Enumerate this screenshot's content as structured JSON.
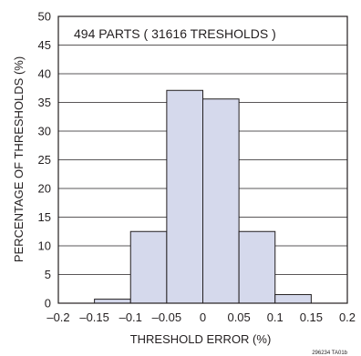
{
  "chart_data": {
    "type": "bar",
    "subtype": "histogram",
    "bins": [
      {
        "start": -0.15,
        "end": -0.1,
        "value": 0.7
      },
      {
        "start": -0.1,
        "end": -0.05,
        "value": 12.5
      },
      {
        "start": -0.05,
        "end": 0.0,
        "value": 37.1
      },
      {
        "start": 0.0,
        "end": 0.05,
        "value": 35.6
      },
      {
        "start": 0.05,
        "end": 0.1,
        "value": 12.5
      },
      {
        "start": 0.1,
        "end": 0.15,
        "value": 1.5
      }
    ],
    "xlabel": "THRESHOLD ERROR (%)",
    "ylabel": "PERCENTAGE OF THRESHOLDS (%)",
    "xlim": [
      -0.2,
      0.2
    ],
    "ylim": [
      0,
      50
    ],
    "xticks": [
      -0.2,
      -0.15,
      -0.1,
      -0.05,
      0,
      0.05,
      0.1,
      0.15,
      0.2
    ],
    "xtick_labels": [
      "–0.2",
      "–0.15",
      "–0.1",
      "–0.05",
      "0",
      "0.05",
      "0.1",
      "0.15",
      "0.2"
    ],
    "yticks": [
      0,
      5,
      10,
      15,
      20,
      25,
      30,
      35,
      40,
      45,
      50
    ],
    "ytick_labels": [
      "0",
      "5",
      "10",
      "15",
      "20",
      "25",
      "30",
      "35",
      "40",
      "45",
      "50"
    ],
    "grid": "horizontal",
    "annotation": "494 PARTS ( 31616 TRESHOLDS )",
    "figure_id": "296234 TA01b",
    "bar_fill": "#d5d9ec",
    "line_color": "#231f20"
  }
}
